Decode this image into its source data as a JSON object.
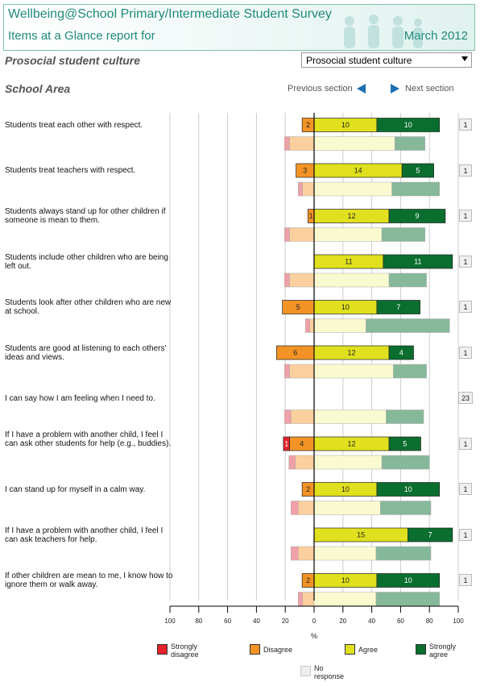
{
  "header": {
    "title_line1": "Wellbeing@School Primary/Intermediate Student Survey",
    "title_line2": "Items at a Glance report for",
    "date": "March 2012"
  },
  "section": {
    "title": "Prosocial student culture",
    "select_value": "Prosocial student culture"
  },
  "area": {
    "title": "School Area",
    "previous_label": "Previous section",
    "next_label": "Next section"
  },
  "colors": {
    "strongly_disagree": "#e8202a",
    "disagree": "#f39325",
    "agree": "#e0e01e",
    "strongly_agree": "#0a6e2e",
    "no_response": "#eeeeee",
    "comp_strongly_disagree": "#f0a0a8",
    "comp_disagree": "#fbcf9e",
    "comp_agree": "#fafad0",
    "comp_strongly_agree": "#86b89a"
  },
  "chart_data": {
    "type": "bar",
    "orientation": "horizontal-diverging",
    "xlabel": "%",
    "xlim": [
      -100,
      100
    ],
    "x_ticks": [
      "100",
      "80",
      "60",
      "40",
      "20",
      "0",
      "20",
      "40",
      "60",
      "80",
      "100"
    ],
    "items": [
      {
        "label": "Students treat each other with respect.",
        "nr": "1",
        "school": {
          "sd": 0,
          "d": 8.3,
          "a": 43.5,
          "sa": 43.5
        },
        "school_labels": {
          "sd": "",
          "d": "2",
          "a": "10",
          "sa": "10"
        },
        "comparison": {
          "sd": 3.5,
          "d": 17,
          "a": 56,
          "sa": 21
        }
      },
      {
        "label": "Students treat teachers with respect.",
        "nr": "1",
        "school": {
          "sd": 0,
          "d": 12.5,
          "a": 61,
          "sa": 22
        },
        "school_labels": {
          "sd": "",
          "d": "3",
          "a": "14",
          "sa": "5"
        },
        "comparison": {
          "sd": 3,
          "d": 8,
          "a": 54,
          "sa": 33
        }
      },
      {
        "label": "Students always stand up for other children if someone is mean to them.",
        "nr": "1",
        "school": {
          "sd": 0,
          "d": 4.3,
          "a": 52,
          "sa": 39
        },
        "school_labels": {
          "sd": "",
          "d": "1",
          "a": "12",
          "sa": "9"
        },
        "comparison": {
          "sd": 3.5,
          "d": 17,
          "a": 47,
          "sa": 30
        }
      },
      {
        "label": "Students include other children who are being left out.",
        "nr": "1",
        "school": {
          "sd": 0,
          "d": 0,
          "a": 48,
          "sa": 48
        },
        "school_labels": {
          "sd": "",
          "d": "",
          "a": "11",
          "sa": "11"
        },
        "comparison": {
          "sd": 3.5,
          "d": 17,
          "a": 52,
          "sa": 26
        }
      },
      {
        "label": "Students look after other children who are new at school.",
        "nr": "1",
        "school": {
          "sd": 0,
          "d": 22,
          "a": 43.5,
          "sa": 30
        },
        "school_labels": {
          "sd": "",
          "d": "5",
          "a": "10",
          "sa": "7"
        },
        "comparison": {
          "sd": 3,
          "d": 3,
          "a": 36,
          "sa": 58
        }
      },
      {
        "label": "Students are good at listening to each others' ideas and views.",
        "nr": "1",
        "school": {
          "sd": 0,
          "d": 26,
          "a": 52,
          "sa": 17
        },
        "school_labels": {
          "sd": "",
          "d": "6",
          "a": "12",
          "sa": "4"
        },
        "comparison": {
          "sd": 3.5,
          "d": 17,
          "a": 55,
          "sa": 23
        }
      },
      {
        "label": "I can say how I am feeling when I need to.",
        "nr": "23",
        "school": {
          "sd": 0,
          "d": 0,
          "a": 0,
          "sa": 0
        },
        "school_labels": {
          "sd": "",
          "d": "",
          "a": "",
          "sa": ""
        },
        "comparison": {
          "sd": 4.5,
          "d": 16,
          "a": 50,
          "sa": 26
        }
      },
      {
        "label": "If I have a problem with another child, I feel I can ask other students for help (e.g., buddies).",
        "nr": "1",
        "school": {
          "sd": 4.3,
          "d": 17,
          "a": 52,
          "sa": 22
        },
        "school_labels": {
          "sd": "1",
          "d": "4",
          "a": "12",
          "sa": "5"
        },
        "comparison": {
          "sd": 4.5,
          "d": 13,
          "a": 47,
          "sa": 33
        }
      },
      {
        "label": "I can stand up for myself in a calm way.",
        "nr": "1",
        "school": {
          "sd": 0,
          "d": 8.3,
          "a": 43.5,
          "sa": 43.5
        },
        "school_labels": {
          "sd": "",
          "d": "2",
          "a": "10",
          "sa": "10"
        },
        "comparison": {
          "sd": 5,
          "d": 11,
          "a": 46,
          "sa": 35
        }
      },
      {
        "label": "If I have a problem with another child, I feel I can ask teachers for help.",
        "nr": "1",
        "school": {
          "sd": 0,
          "d": 0,
          "a": 65,
          "sa": 31
        },
        "school_labels": {
          "sd": "",
          "d": "",
          "a": "15",
          "sa": "7"
        },
        "comparison": {
          "sd": 5,
          "d": 11,
          "a": 43,
          "sa": 38
        }
      },
      {
        "label": "If other children are mean to me, I know how to ignore them or walk away.",
        "nr": "1",
        "school": {
          "sd": 0,
          "d": 8.3,
          "a": 43.5,
          "sa": 43.5
        },
        "school_labels": {
          "sd": "",
          "d": "2",
          "a": "10",
          "sa": "10"
        },
        "comparison": {
          "sd": 3,
          "d": 8,
          "a": 43,
          "sa": 44
        }
      }
    ],
    "legend": [
      "Strongly disagree",
      "Disagree",
      "Agree",
      "Strongly agree",
      "No response"
    ]
  }
}
